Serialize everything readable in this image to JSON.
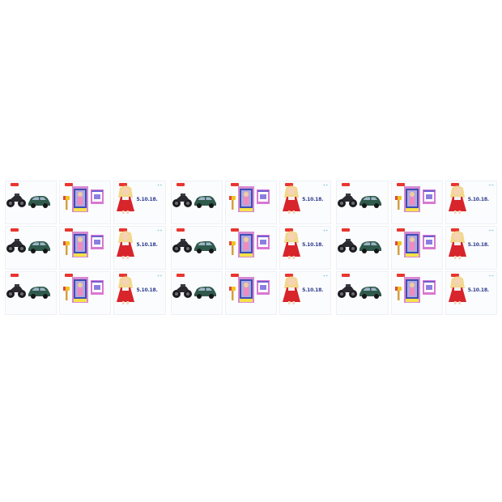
{
  "sheet": {
    "rows": 3,
    "columns": 3,
    "note_text": "5.10.18.",
    "colors": {
      "background": "#ffffff",
      "tag_red": "#e8362f",
      "car_green": "#2f5a4b",
      "doll_dress": "#d8242b",
      "box_pink": "#d78ad2",
      "box_blue": "#3c4fb3",
      "note_blue": "#2b3a8c"
    },
    "tiles": [
      {
        "id": "r1c1"
      },
      {
        "id": "r1c2"
      },
      {
        "id": "r1c3"
      },
      {
        "id": "r2c1"
      },
      {
        "id": "r2c2"
      },
      {
        "id": "r2c3"
      },
      {
        "id": "r3c1"
      },
      {
        "id": "r3c2"
      },
      {
        "id": "r3c3"
      }
    ]
  }
}
